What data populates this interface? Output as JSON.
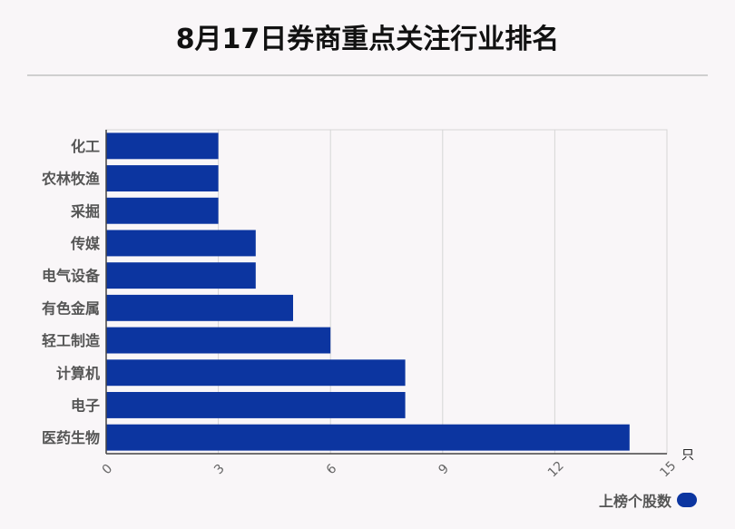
{
  "title": "8月17日券商重点关注行业排名",
  "unit_label": "只",
  "legend": {
    "label": "上榜个股数",
    "color": "#0c35a0"
  },
  "chart_data": {
    "type": "bar",
    "orientation": "horizontal",
    "title": "8月17日券商重点关注行业排名",
    "categories": [
      "化工",
      "农林牧渔",
      "采掘",
      "传媒",
      "电气设备",
      "有色金属",
      "轻工制造",
      "计算机",
      "电子",
      "医药生物"
    ],
    "series": [
      {
        "name": "上榜个股数",
        "values": [
          3,
          3,
          3,
          4,
          4,
          5,
          6,
          8,
          8,
          14
        ]
      }
    ],
    "xlim": [
      0,
      15
    ],
    "xticks": [
      "0",
      "3",
      "6",
      "9",
      "12",
      "15"
    ],
    "xunit": "只",
    "grid": true,
    "legend_position": "bottom-right",
    "bar_color": "#0c35a0"
  }
}
